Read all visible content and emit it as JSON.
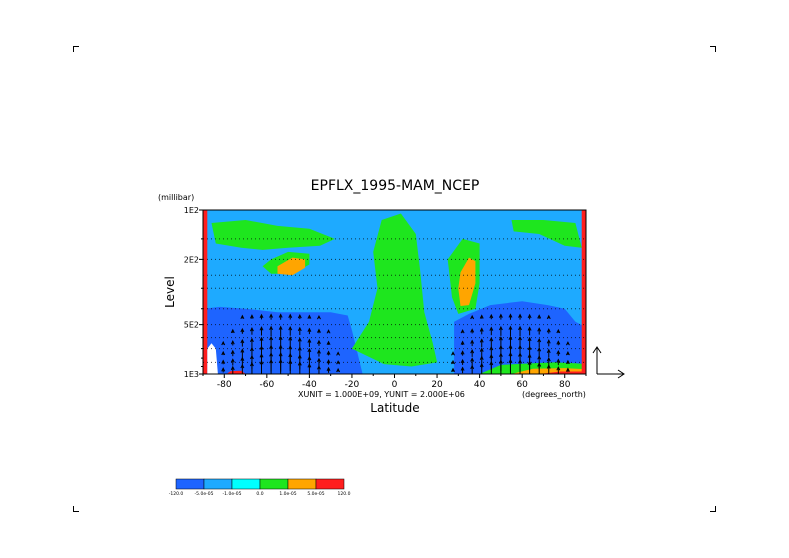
{
  "chart_data": {
    "type": "heatmap",
    "title": "EPFLX_1995-MAM_NCEP",
    "xlabel": "Latitude",
    "xunits": "(degrees_north)",
    "ylabel": "Level",
    "yunits": "(millibar)",
    "xlim": [
      -90,
      90
    ],
    "ylim": [
      1000,
      100
    ],
    "yscale": "log",
    "x_ticks": [
      "-80",
      "-60",
      "-40",
      "-20",
      "0",
      "20",
      "40",
      "60",
      "80"
    ],
    "y_ticks": [
      "1E2",
      "2E2",
      "5E2",
      "1E3"
    ],
    "vector_scale_note": "XUNIT = 1.000E+09, YUNIT = 2.000E+06",
    "colorbar": {
      "levels": [
        "-120.0",
        "-5.0e-05",
        "-1.0e-05",
        "0.0",
        "1.0e-05",
        "5.0e-05",
        "120.0"
      ],
      "colors": [
        "#1e64ff",
        "#1eaaff",
        "#00ffff",
        "#1ee61e",
        "#ffa500",
        "#ff1e1e"
      ]
    },
    "regions": [
      {
        "color": "#1eaaff",
        "description": "background light blue"
      },
      {
        "color": "#1e64ff",
        "description": "lower troposphere blue both hemispheres"
      },
      {
        "color": "#1ee61e",
        "description": "equatorial green column"
      },
      {
        "color": "#ffa500",
        "description": "orange maxima near -50 and 35 latitude, 200 mb"
      },
      {
        "color": "#ff1e1e",
        "description": "red edges and surface"
      }
    ],
    "grid": true
  },
  "colors": {
    "blue": "#1e64ff",
    "lightblue": "#1eaaff",
    "cyan": "#00ffff",
    "green": "#1ee61e",
    "orange": "#ffa500",
    "red": "#ff1e1e",
    "axis": "#000000"
  }
}
